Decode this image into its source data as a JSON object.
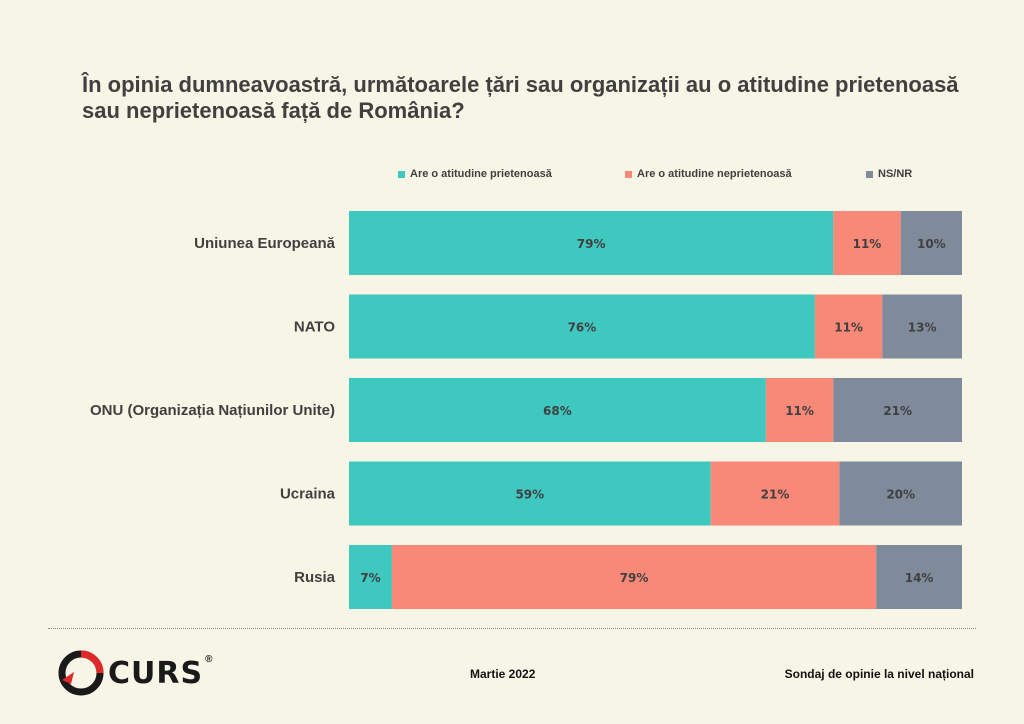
{
  "title": "În opinia dumneavoastră, următoarele țări sau organizații au o atitudine prietenoasă sau neprietenoasă față de România?",
  "colors": {
    "friendly": "#3ec8bf",
    "unfriendly": "#f88878",
    "nsnr": "#7f8a9b",
    "background": "#f7f5e6"
  },
  "chart_data": {
    "type": "bar",
    "orientation": "horizontal",
    "stacked": true,
    "percent": true,
    "categories": [
      "Uniunea Europeană",
      "NATO",
      "ONU (Organizația Națiunilor Unite)",
      "Ucraina",
      "Rusia"
    ],
    "series": [
      {
        "name": "Are o atitudine prietenoasă",
        "color": "#3ec8bf",
        "values": [
          79,
          76,
          68,
          59,
          7
        ]
      },
      {
        "name": "Are o atitudine neprietenoasă",
        "color": "#f88878",
        "values": [
          11,
          11,
          11,
          21,
          79
        ]
      },
      {
        "name": "NS/NR",
        "color": "#7f8a9b",
        "values": [
          10,
          13,
          21,
          20,
          14
        ]
      }
    ],
    "legend_position": "top",
    "grid": false
  },
  "footer": {
    "logo_text": "CURS",
    "logo_reg": "®",
    "date": "Martie 2022",
    "source": "Sondaj de opinie la nivel național"
  }
}
